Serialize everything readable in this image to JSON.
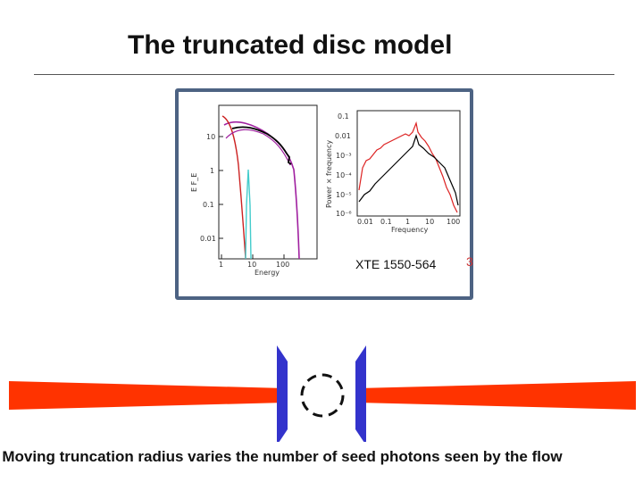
{
  "slide": {
    "title": "The truncated disc model",
    "inset_label": "XTE 1550-564",
    "side_mark": "3",
    "caption": "Moving truncation radius varies the number of seed photons seen by the flow"
  },
  "spectrum_plot": {
    "ylabel": "E F_E",
    "xlabel": "Energy",
    "x_ticks": [
      "1",
      "10",
      "100"
    ],
    "y_ticks": [
      "10",
      "1",
      "0.1",
      "0.01"
    ]
  },
  "psd_plot": {
    "ylabel": "Power × frequency",
    "xlabel": "Frequency",
    "x_ticks": [
      "0.01",
      "0.1",
      "1",
      "10",
      "100"
    ],
    "y_ticks": [
      "0.1",
      "0.01",
      "10⁻³",
      "10⁻⁴",
      "10⁻⁵",
      "10⁻⁶"
    ]
  },
  "colors": {
    "frame": "#4d6383",
    "disc": "#ff3300",
    "corona_wall": "#3333cc",
    "hard_component": "#a020a0",
    "soft_component": "#cc2222",
    "data": "#000000",
    "psd_red": "#dd2222"
  }
}
